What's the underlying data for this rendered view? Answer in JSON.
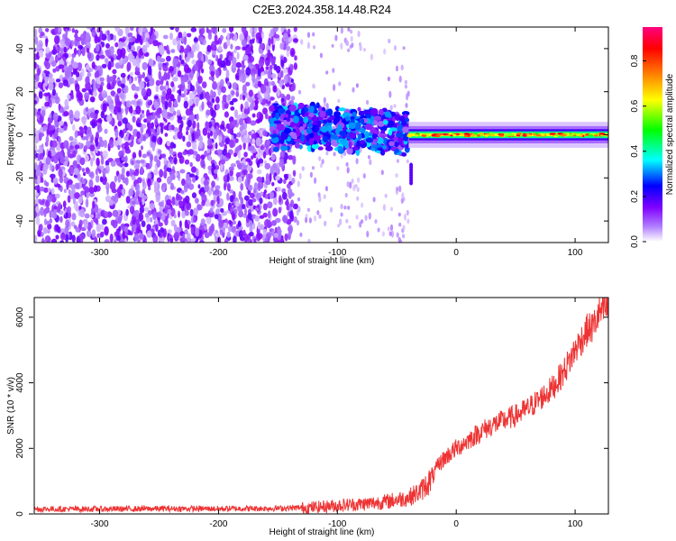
{
  "title": "C2E3.2024.358.14.48.R24",
  "chart_data": [
    {
      "type": "heatmap",
      "xlabel": "Height of straight line (km)",
      "ylabel": "Frequency (Hz)",
      "xlim": [
        -355,
        128
      ],
      "ylim": [
        -50,
        50
      ],
      "x_ticks": [
        -300,
        -200,
        -100,
        0,
        100
      ],
      "x_tick_labels": [
        "-300",
        "-200",
        "-100",
        "0",
        "100"
      ],
      "y_ticks": [
        -40,
        -20,
        0,
        20,
        40
      ],
      "y_tick_labels": [
        "-40",
        "-20",
        "0",
        "20",
        "40"
      ],
      "colorbar": {
        "label": "Normalized spectral amplitude",
        "range": [
          0,
          0.95
        ],
        "ticks": [
          0.0,
          0.2,
          0.4,
          0.6,
          0.8
        ],
        "tick_labels": [
          "0.0",
          "0.2",
          "0.4",
          "0.6",
          "0.8"
        ],
        "colors": [
          "#ffffff",
          "#7f00ff",
          "#0000ff",
          "#00ffff",
          "#00ff00",
          "#ffff00",
          "#ff8000",
          "#ff0000",
          "#ff0080"
        ]
      },
      "regions": [
        {
          "x_range": [
            -355,
            -135
          ],
          "freq_range": [
            -50,
            50
          ],
          "amplitude": 0.1
        },
        {
          "x_range": [
            -155,
            -40
          ],
          "freq_range": [
            -8,
            12
          ],
          "amplitude": 0.3
        },
        {
          "x_range": [
            -40,
            128
          ],
          "freq_range": [
            -3,
            3
          ],
          "amplitude": 0.7
        }
      ],
      "grid": false
    },
    {
      "type": "line",
      "xlabel": "Height of straight line (km)",
      "ylabel": "SNR (10 * v/v)",
      "xlim": [
        -355,
        128
      ],
      "ylim": [
        0,
        6600
      ],
      "x_ticks": [
        -300,
        -200,
        -100,
        0,
        100
      ],
      "x_tick_labels": [
        "-300",
        "-200",
        "-100",
        "0",
        "100"
      ],
      "y_ticks": [
        0,
        2000,
        4000,
        6000
      ],
      "y_tick_labels": [
        "0",
        "2000",
        "4000",
        "6000"
      ],
      "color": "#ee3333",
      "series": [
        {
          "x": [
            -355,
            -300,
            -250,
            -200,
            -150,
            -120,
            -100,
            -80,
            -60,
            -40,
            -30,
            -20,
            -15,
            -10,
            0,
            10,
            20,
            30,
            40,
            50,
            60,
            70,
            80,
            90,
            100,
            110,
            115,
            120,
            128
          ],
          "values": [
            150,
            150,
            160,
            160,
            170,
            200,
            260,
            300,
            370,
            500,
            700,
            1100,
            1500,
            1700,
            2000,
            2250,
            2500,
            2700,
            2850,
            3000,
            3200,
            3500,
            3800,
            4300,
            5000,
            5600,
            5700,
            6100,
            6300
          ]
        }
      ],
      "grid": false
    }
  ]
}
